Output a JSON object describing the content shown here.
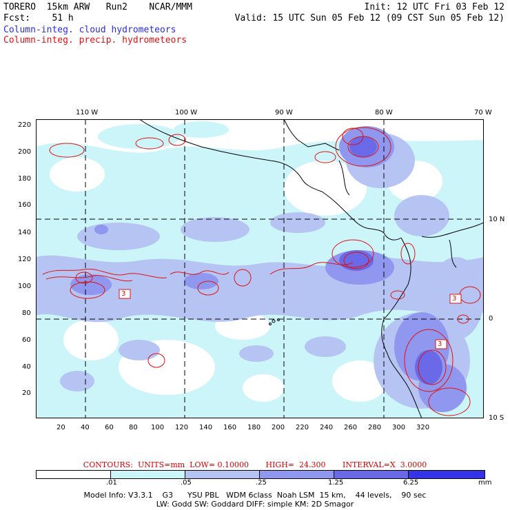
{
  "header": {
    "line1_left": "TORERO  15km ARW   Run2    NCAR/MMM",
    "line1_right": "Init: 12 UTC Fri 03 Feb 12",
    "line2_left": "Fcst:    51 h",
    "line2_right": "Valid: 15 UTC Sun 05 Feb 12 (09 CST Sun 05 Feb 12)",
    "field_cloud": "Column-integ. cloud hydrometeors",
    "field_precip": "Column-integ. precip. hydrometeors"
  },
  "axes": {
    "longitude_labels": [
      "110 W",
      "100 W",
      "90 W",
      "80 W",
      "70 W"
    ],
    "latitude_labels": [
      "10 N",
      "0",
      "10 S"
    ],
    "y_grid_labels": [
      "220",
      "200",
      "180",
      "160",
      "140",
      "120",
      "100",
      "80",
      "60",
      "40",
      "20"
    ],
    "x_grid_labels": [
      "20",
      "40",
      "60",
      "80",
      "100",
      "120",
      "140",
      "160",
      "180",
      "200",
      "220",
      "240",
      "260",
      "280",
      "300",
      "320"
    ]
  },
  "contours": {
    "text": "CONTOURS:  UNITS=mm  LOW= 0.10000       HIGH=  24.300       INTERVAL=X  3.0000"
  },
  "colorbar": {
    "units": "mm",
    "labels": [
      ".01",
      ".05",
      ".25",
      "1.25",
      "6.25"
    ],
    "colors": [
      "#ffffff",
      "#ccf5fa",
      "#b6c4f4",
      "#8f98ee",
      "#6a6ae8",
      "#3434e6"
    ]
  },
  "footer": {
    "line1": "Model Info: V3.3.1    G3      YSU PBL   WDM 6class  Noah LSM  15 km,    44 levels,    90 sec",
    "line2": "LW: Godd SW: Goddard DIFF: simple KM: 2D Smagor"
  },
  "overlay_labels": {
    "box_label": "3"
  }
}
